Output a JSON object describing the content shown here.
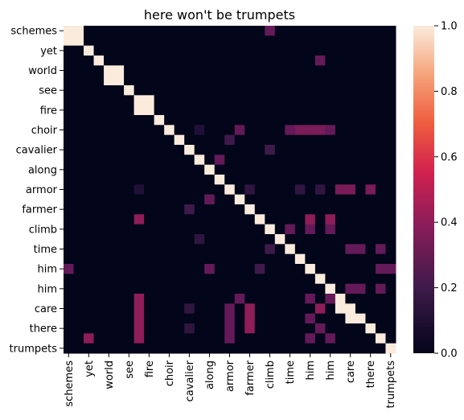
{
  "chart_data": {
    "type": "heatmap",
    "title": "here won't be trumpets",
    "labels": [
      "schemes",
      "",
      "yet",
      "",
      "world",
      "",
      "see",
      "",
      "fire",
      "",
      "choir",
      "",
      "cavalier",
      "",
      "along",
      "",
      "armor",
      "",
      "farmer",
      "",
      "climb",
      "",
      "time",
      "",
      "him",
      "",
      "him",
      "",
      "care",
      "",
      "there",
      "",
      "trumpets"
    ],
    "shown_row_tick_indices": [
      0,
      2,
      4,
      6,
      8,
      10,
      12,
      14,
      16,
      18,
      20,
      22,
      24,
      26,
      28,
      30,
      32
    ],
    "shown_col_tick_indices": [
      0,
      2,
      4,
      6,
      8,
      10,
      12,
      14,
      16,
      18,
      20,
      22,
      24,
      26,
      28,
      30,
      32
    ],
    "x_tick_labels": [
      "schemes",
      "yet",
      "world",
      "see",
      "fire",
      "choir",
      "cavalier",
      "along",
      "armor",
      "farmer",
      "climb",
      "time",
      "him",
      "him",
      "care",
      "there",
      "trumpets"
    ],
    "y_tick_labels": [
      "schemes",
      "yet",
      "world",
      "see",
      "fire",
      "choir",
      "cavalier",
      "along",
      "armor",
      "farmer",
      "climb",
      "time",
      "him",
      "him",
      "care",
      "there",
      "trumpets"
    ],
    "colorbar": {
      "min": 0.0,
      "max": 1.0,
      "ticks": [
        "0.0",
        "0.2",
        "0.4",
        "0.6",
        "0.8",
        "1.0"
      ],
      "colormap": "rocket"
    },
    "default_value": 0.0,
    "cells": [
      [
        0,
        0,
        1
      ],
      [
        0,
        1,
        1
      ],
      [
        1,
        0,
        1
      ],
      [
        1,
        1,
        1
      ],
      [
        0,
        20,
        0.3
      ],
      [
        2,
        2,
        1
      ],
      [
        3,
        3,
        1
      ],
      [
        3,
        25,
        0.3
      ],
      [
        4,
        4,
        1
      ],
      [
        4,
        5,
        1
      ],
      [
        5,
        4,
        1
      ],
      [
        5,
        5,
        1
      ],
      [
        6,
        6,
        1
      ],
      [
        7,
        7,
        1
      ],
      [
        7,
        8,
        1
      ],
      [
        8,
        7,
        1
      ],
      [
        8,
        8,
        1
      ],
      [
        9,
        9,
        1
      ],
      [
        10,
        10,
        1
      ],
      [
        10,
        13,
        0.1
      ],
      [
        10,
        17,
        0.3
      ],
      [
        10,
        22,
        0.3
      ],
      [
        10,
        23,
        0.35
      ],
      [
        10,
        24,
        0.35
      ],
      [
        10,
        25,
        0.35
      ],
      [
        10,
        26,
        0.3
      ],
      [
        11,
        11,
        1
      ],
      [
        11,
        16,
        0.2
      ],
      [
        12,
        12,
        1
      ],
      [
        12,
        20,
        0.2
      ],
      [
        13,
        13,
        1
      ],
      [
        13,
        15,
        0.3
      ],
      [
        14,
        14,
        1
      ],
      [
        15,
        15,
        1
      ],
      [
        16,
        16,
        1
      ],
      [
        16,
        7,
        0.1
      ],
      [
        16,
        18,
        0.15
      ],
      [
        16,
        23,
        0.15
      ],
      [
        16,
        25,
        0.15
      ],
      [
        16,
        27,
        0.35
      ],
      [
        16,
        28,
        0.35
      ],
      [
        16,
        30,
        0.35
      ],
      [
        17,
        17,
        1
      ],
      [
        17,
        14,
        0.3
      ],
      [
        18,
        18,
        1
      ],
      [
        18,
        12,
        0.2
      ],
      [
        19,
        19,
        1
      ],
      [
        19,
        7,
        0.4
      ],
      [
        19,
        24,
        0.4
      ],
      [
        19,
        26,
        0.4
      ],
      [
        20,
        20,
        1
      ],
      [
        20,
        22,
        0.3
      ],
      [
        20,
        24,
        0.3
      ],
      [
        20,
        26,
        0.3
      ],
      [
        21,
        21,
        1
      ],
      [
        21,
        13,
        0.15
      ],
      [
        22,
        22,
        1
      ],
      [
        22,
        20,
        0.2
      ],
      [
        22,
        28,
        0.3
      ],
      [
        22,
        29,
        0.3
      ],
      [
        22,
        31,
        0.3
      ],
      [
        23,
        23,
        1
      ],
      [
        24,
        24,
        1
      ],
      [
        24,
        0,
        0.3
      ],
      [
        24,
        14,
        0.3
      ],
      [
        24,
        19,
        0.2
      ],
      [
        24,
        31,
        0.3
      ],
      [
        24,
        32,
        0.3
      ],
      [
        25,
        25,
        1
      ],
      [
        26,
        26,
        1
      ],
      [
        26,
        28,
        0.3
      ],
      [
        26,
        29,
        0.3
      ],
      [
        26,
        31,
        0.3
      ],
      [
        27,
        27,
        1
      ],
      [
        27,
        7,
        0.4
      ],
      [
        27,
        17,
        0.3
      ],
      [
        27,
        24,
        0.3
      ],
      [
        27,
        26,
        0.3
      ],
      [
        28,
        28,
        1
      ],
      [
        28,
        7,
        0.4
      ],
      [
        28,
        12,
        0.15
      ],
      [
        28,
        16,
        0.3
      ],
      [
        28,
        18,
        0.4
      ],
      [
        28,
        27,
        1
      ],
      [
        28,
        25,
        0.4
      ],
      [
        29,
        29,
        1
      ],
      [
        29,
        7,
        0.4
      ],
      [
        29,
        16,
        0.3
      ],
      [
        29,
        18,
        0.4
      ],
      [
        29,
        28,
        1
      ],
      [
        29,
        24,
        0.3
      ],
      [
        30,
        30,
        1
      ],
      [
        30,
        7,
        0.4
      ],
      [
        30,
        12,
        0.15
      ],
      [
        30,
        16,
        0.3
      ],
      [
        30,
        18,
        0.4
      ],
      [
        30,
        25,
        0.3
      ],
      [
        31,
        31,
        1
      ],
      [
        31,
        2,
        0.4
      ],
      [
        31,
        7,
        0.4
      ],
      [
        31,
        16,
        0.3
      ],
      [
        31,
        24,
        0.3
      ],
      [
        31,
        26,
        0.3
      ],
      [
        32,
        32,
        1
      ]
    ]
  }
}
